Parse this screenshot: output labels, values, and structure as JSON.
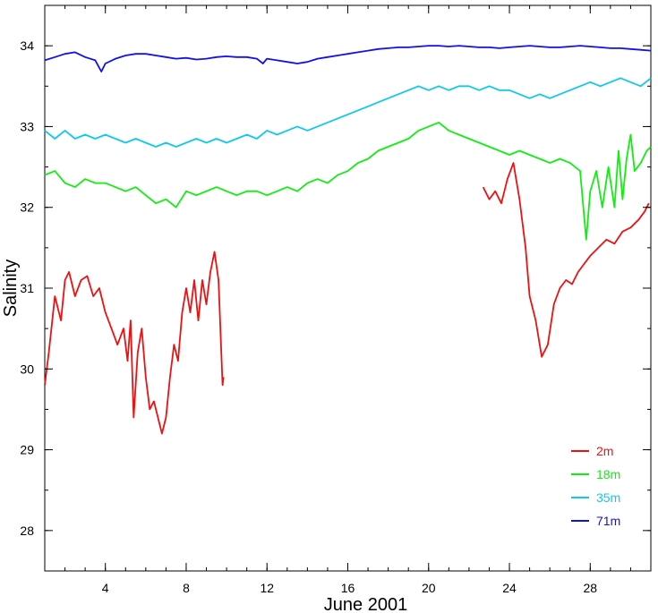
{
  "chart_data": {
    "type": "line",
    "title": "",
    "xlabel": "June 2001",
    "ylabel": "Salinity",
    "xlim": [
      1,
      31
    ],
    "ylim": [
      27.5,
      34.5
    ],
    "xticks": [
      4,
      8,
      12,
      16,
      20,
      24,
      28
    ],
    "yticks": [
      28,
      29,
      30,
      31,
      32,
      33,
      34
    ],
    "grid": false,
    "legend": {
      "position": "bottom-right"
    },
    "series": [
      {
        "name": "2m",
        "color": "#ee1111",
        "segments": [
          [
            [
              1.0,
              29.8
            ],
            [
              1.2,
              30.2
            ],
            [
              1.5,
              30.9
            ],
            [
              1.8,
              30.6
            ],
            [
              2.0,
              31.1
            ],
            [
              2.2,
              31.2
            ],
            [
              2.5,
              30.9
            ],
            [
              2.8,
              31.1
            ],
            [
              3.1,
              31.15
            ],
            [
              3.4,
              30.9
            ],
            [
              3.7,
              31.0
            ],
            [
              4.0,
              30.7
            ],
            [
              4.3,
              30.5
            ],
            [
              4.6,
              30.3
            ],
            [
              4.9,
              30.5
            ],
            [
              5.1,
              30.1
            ],
            [
              5.25,
              30.6
            ],
            [
              5.4,
              29.4
            ],
            [
              5.6,
              30.2
            ],
            [
              5.8,
              30.5
            ],
            [
              6.0,
              29.9
            ],
            [
              6.2,
              29.5
            ],
            [
              6.4,
              29.6
            ],
            [
              6.6,
              29.4
            ],
            [
              6.8,
              29.2
            ],
            [
              7.0,
              29.4
            ],
            [
              7.2,
              29.9
            ],
            [
              7.4,
              30.3
            ],
            [
              7.6,
              30.1
            ],
            [
              7.8,
              30.7
            ],
            [
              8.0,
              31.0
            ],
            [
              8.2,
              30.7
            ],
            [
              8.4,
              31.1
            ],
            [
              8.6,
              30.6
            ],
            [
              8.8,
              31.1
            ],
            [
              9.0,
              30.8
            ],
            [
              9.2,
              31.2
            ],
            [
              9.4,
              31.45
            ],
            [
              9.6,
              31.1
            ],
            [
              9.8,
              29.8
            ],
            [
              9.85,
              29.9
            ]
          ],
          [
            [
              22.7,
              32.25
            ],
            [
              23.0,
              32.1
            ],
            [
              23.3,
              32.2
            ],
            [
              23.6,
              32.05
            ],
            [
              23.9,
              32.35
            ],
            [
              24.2,
              32.55
            ],
            [
              24.5,
              32.1
            ],
            [
              24.8,
              31.5
            ],
            [
              25.0,
              30.9
            ],
            [
              25.3,
              30.6
            ],
            [
              25.6,
              30.15
            ],
            [
              25.9,
              30.3
            ],
            [
              26.2,
              30.8
            ],
            [
              26.5,
              31.0
            ],
            [
              26.8,
              31.1
            ],
            [
              27.1,
              31.05
            ],
            [
              27.4,
              31.2
            ],
            [
              27.7,
              31.3
            ],
            [
              28.0,
              31.4
            ],
            [
              28.4,
              31.5
            ],
            [
              28.8,
              31.6
            ],
            [
              29.2,
              31.55
            ],
            [
              29.6,
              31.7
            ],
            [
              30.0,
              31.75
            ],
            [
              30.4,
              31.85
            ],
            [
              30.7,
              31.95
            ],
            [
              30.9,
              32.05
            ]
          ]
        ]
      },
      {
        "name": "18m",
        "color": "#11ee11",
        "segments": [
          [
            [
              1.0,
              32.4
            ],
            [
              1.5,
              32.45
            ],
            [
              2.0,
              32.3
            ],
            [
              2.5,
              32.25
            ],
            [
              3.0,
              32.35
            ],
            [
              3.5,
              32.3
            ],
            [
              4.0,
              32.3
            ],
            [
              4.5,
              32.25
            ],
            [
              5.0,
              32.2
            ],
            [
              5.5,
              32.25
            ],
            [
              6.0,
              32.15
            ],
            [
              6.5,
              32.05
            ],
            [
              7.0,
              32.1
            ],
            [
              7.5,
              32.0
            ],
            [
              8.0,
              32.2
            ],
            [
              8.5,
              32.15
            ],
            [
              9.0,
              32.2
            ],
            [
              9.5,
              32.25
            ],
            [
              10.0,
              32.2
            ],
            [
              10.5,
              32.15
            ],
            [
              11.0,
              32.2
            ],
            [
              11.5,
              32.2
            ],
            [
              12.0,
              32.15
            ],
            [
              12.5,
              32.2
            ],
            [
              13.0,
              32.25
            ],
            [
              13.5,
              32.2
            ],
            [
              14.0,
              32.3
            ],
            [
              14.5,
              32.35
            ],
            [
              15.0,
              32.3
            ],
            [
              15.5,
              32.4
            ],
            [
              16.0,
              32.45
            ],
            [
              16.5,
              32.55
            ],
            [
              17.0,
              32.6
            ],
            [
              17.5,
              32.7
            ],
            [
              18.0,
              32.75
            ],
            [
              18.5,
              32.8
            ],
            [
              19.0,
              32.85
            ],
            [
              19.5,
              32.95
            ],
            [
              20.0,
              33.0
            ],
            [
              20.5,
              33.05
            ],
            [
              21.0,
              32.95
            ],
            [
              21.5,
              32.9
            ],
            [
              22.0,
              32.85
            ],
            [
              22.5,
              32.8
            ],
            [
              23.0,
              32.75
            ],
            [
              23.5,
              32.7
            ],
            [
              24.0,
              32.65
            ],
            [
              24.5,
              32.7
            ],
            [
              25.0,
              32.65
            ],
            [
              25.5,
              32.6
            ],
            [
              26.0,
              32.55
            ],
            [
              26.5,
              32.6
            ],
            [
              27.0,
              32.55
            ],
            [
              27.5,
              32.45
            ],
            [
              27.8,
              31.6
            ],
            [
              28.0,
              32.2
            ],
            [
              28.3,
              32.45
            ],
            [
              28.6,
              32.0
            ],
            [
              28.9,
              32.5
            ],
            [
              29.2,
              32.0
            ],
            [
              29.4,
              32.7
            ],
            [
              29.6,
              32.1
            ],
            [
              29.8,
              32.6
            ],
            [
              30.0,
              32.9
            ],
            [
              30.2,
              32.45
            ],
            [
              30.5,
              32.55
            ],
            [
              30.8,
              32.7
            ],
            [
              31.0,
              32.75
            ]
          ]
        ]
      },
      {
        "name": "35m",
        "color": "#11c8ee",
        "segments": [
          [
            [
              1.0,
              32.95
            ],
            [
              1.5,
              32.85
            ],
            [
              2.0,
              32.95
            ],
            [
              2.5,
              32.85
            ],
            [
              3.0,
              32.9
            ],
            [
              3.5,
              32.85
            ],
            [
              4.0,
              32.9
            ],
            [
              4.5,
              32.85
            ],
            [
              5.0,
              32.8
            ],
            [
              5.5,
              32.85
            ],
            [
              6.0,
              32.8
            ],
            [
              6.5,
              32.75
            ],
            [
              7.0,
              32.8
            ],
            [
              7.5,
              32.75
            ],
            [
              8.0,
              32.8
            ],
            [
              8.5,
              32.85
            ],
            [
              9.0,
              32.8
            ],
            [
              9.5,
              32.85
            ],
            [
              10.0,
              32.8
            ],
            [
              10.5,
              32.85
            ],
            [
              11.0,
              32.9
            ],
            [
              11.5,
              32.85
            ],
            [
              12.0,
              32.95
            ],
            [
              12.5,
              32.9
            ],
            [
              13.0,
              32.95
            ],
            [
              13.5,
              33.0
            ],
            [
              14.0,
              32.95
            ],
            [
              14.5,
              33.0
            ],
            [
              15.0,
              33.05
            ],
            [
              15.5,
              33.1
            ],
            [
              16.0,
              33.15
            ],
            [
              16.5,
              33.2
            ],
            [
              17.0,
              33.25
            ],
            [
              17.5,
              33.3
            ],
            [
              18.0,
              33.35
            ],
            [
              18.5,
              33.4
            ],
            [
              19.0,
              33.45
            ],
            [
              19.5,
              33.5
            ],
            [
              20.0,
              33.45
            ],
            [
              20.5,
              33.5
            ],
            [
              21.0,
              33.45
            ],
            [
              21.5,
              33.5
            ],
            [
              22.0,
              33.5
            ],
            [
              22.5,
              33.45
            ],
            [
              23.0,
              33.5
            ],
            [
              23.5,
              33.45
            ],
            [
              24.0,
              33.45
            ],
            [
              24.5,
              33.4
            ],
            [
              25.0,
              33.35
            ],
            [
              25.5,
              33.4
            ],
            [
              26.0,
              33.35
            ],
            [
              26.5,
              33.4
            ],
            [
              27.0,
              33.45
            ],
            [
              27.5,
              33.5
            ],
            [
              28.0,
              33.55
            ],
            [
              28.5,
              33.5
            ],
            [
              29.0,
              33.55
            ],
            [
              29.5,
              33.6
            ],
            [
              30.0,
              33.55
            ],
            [
              30.5,
              33.5
            ],
            [
              31.0,
              33.6
            ]
          ]
        ]
      },
      {
        "name": "71m",
        "color": "#1111ee",
        "segments": [
          [
            [
              1.0,
              33.82
            ],
            [
              1.5,
              33.86
            ],
            [
              2.0,
              33.9
            ],
            [
              2.5,
              33.92
            ],
            [
              3.0,
              33.86
            ],
            [
              3.5,
              33.82
            ],
            [
              3.8,
              33.68
            ],
            [
              4.0,
              33.78
            ],
            [
              4.5,
              33.84
            ],
            [
              5.0,
              33.88
            ],
            [
              5.5,
              33.9
            ],
            [
              6.0,
              33.9
            ],
            [
              6.5,
              33.88
            ],
            [
              7.0,
              33.86
            ],
            [
              7.5,
              33.84
            ],
            [
              8.0,
              33.85
            ],
            [
              8.5,
              33.83
            ],
            [
              9.0,
              33.84
            ],
            [
              9.5,
              33.86
            ],
            [
              10.0,
              33.87
            ],
            [
              10.5,
              33.86
            ],
            [
              11.0,
              33.86
            ],
            [
              11.5,
              33.84
            ],
            [
              11.8,
              33.78
            ],
            [
              12.0,
              33.84
            ],
            [
              12.5,
              33.82
            ],
            [
              13.0,
              33.8
            ],
            [
              13.5,
              33.78
            ],
            [
              14.0,
              33.8
            ],
            [
              14.5,
              33.84
            ],
            [
              15.0,
              33.86
            ],
            [
              15.5,
              33.88
            ],
            [
              16.0,
              33.9
            ],
            [
              16.5,
              33.92
            ],
            [
              17.0,
              33.94
            ],
            [
              17.5,
              33.96
            ],
            [
              18.0,
              33.97
            ],
            [
              18.5,
              33.98
            ],
            [
              19.0,
              33.98
            ],
            [
              19.5,
              33.99
            ],
            [
              20.0,
              34.0
            ],
            [
              20.5,
              34.0
            ],
            [
              21.0,
              33.99
            ],
            [
              21.5,
              34.0
            ],
            [
              22.0,
              33.99
            ],
            [
              22.5,
              33.98
            ],
            [
              23.0,
              33.98
            ],
            [
              23.5,
              33.97
            ],
            [
              24.0,
              33.98
            ],
            [
              24.5,
              33.99
            ],
            [
              25.0,
              34.0
            ],
            [
              25.5,
              33.99
            ],
            [
              26.0,
              33.98
            ],
            [
              26.5,
              33.98
            ],
            [
              27.0,
              33.99
            ],
            [
              27.5,
              34.0
            ],
            [
              28.0,
              33.99
            ],
            [
              28.5,
              33.98
            ],
            [
              29.0,
              33.97
            ],
            [
              29.5,
              33.97
            ],
            [
              30.0,
              33.96
            ],
            [
              30.5,
              33.95
            ],
            [
              31.0,
              33.94
            ]
          ]
        ]
      }
    ]
  }
}
